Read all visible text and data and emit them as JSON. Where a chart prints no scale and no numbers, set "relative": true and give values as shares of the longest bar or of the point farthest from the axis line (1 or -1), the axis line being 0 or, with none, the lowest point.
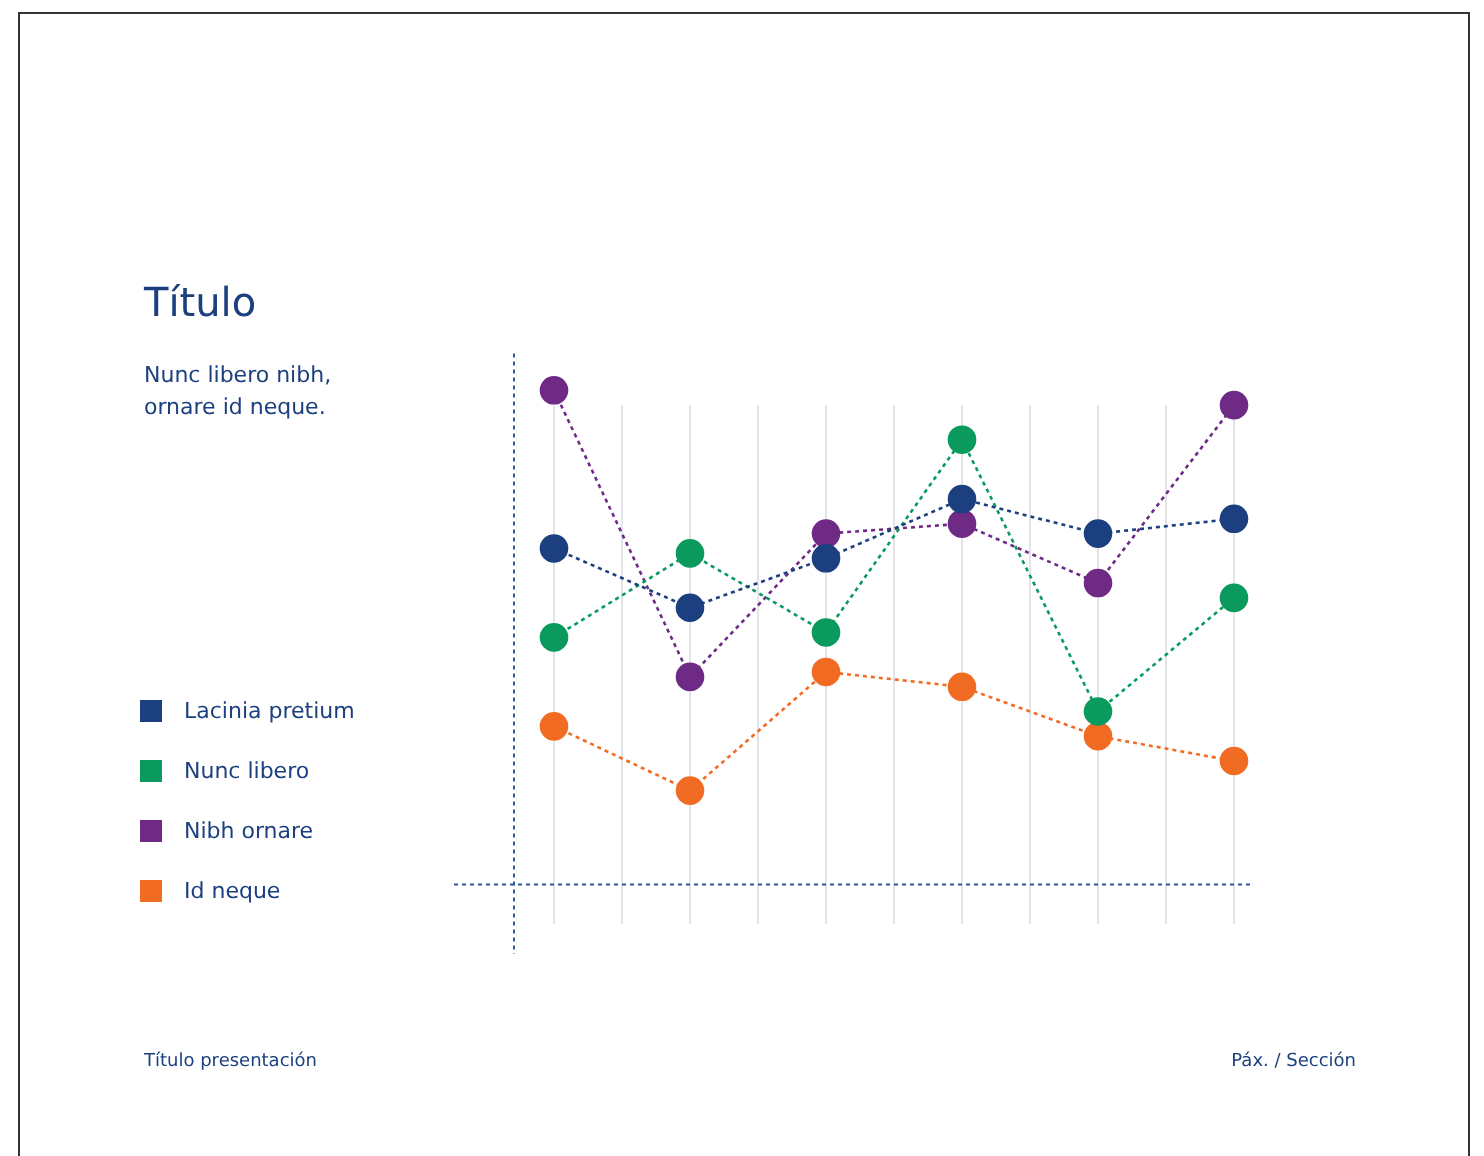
{
  "chart_data": {
    "type": "line",
    "title": "Título",
    "subtitle": "Nunc libero nibh,\nornare id neque.",
    "categories": [
      null,
      null,
      null,
      null,
      null,
      null
    ],
    "relative": true,
    "grid": "x",
    "legend": "left",
    "marker": "circle",
    "line_style": "dotted",
    "series": [
      {
        "name": "Lacinia pretium",
        "color": "#1b3f7f",
        "values": [
          0.68,
          0.56,
          0.66,
          0.78,
          0.71,
          0.74
        ]
      },
      {
        "name": "Nunc libero",
        "color": "#0a9a5e",
        "values": [
          0.5,
          0.67,
          0.51,
          0.9,
          0.35,
          0.58
        ]
      },
      {
        "name": "Nibh ornare",
        "color": "#6f2a86",
        "values": [
          1,
          0.42,
          0.71,
          0.73,
          0.61,
          0.97
        ]
      },
      {
        "name": "Id neque",
        "color": "#f26b22",
        "values": [
          0.32,
          0.19,
          0.43,
          0.4,
          0.3,
          0.25
        ]
      }
    ],
    "annotations": [
      "Título presentación",
      "Páx. / Sección"
    ]
  }
}
